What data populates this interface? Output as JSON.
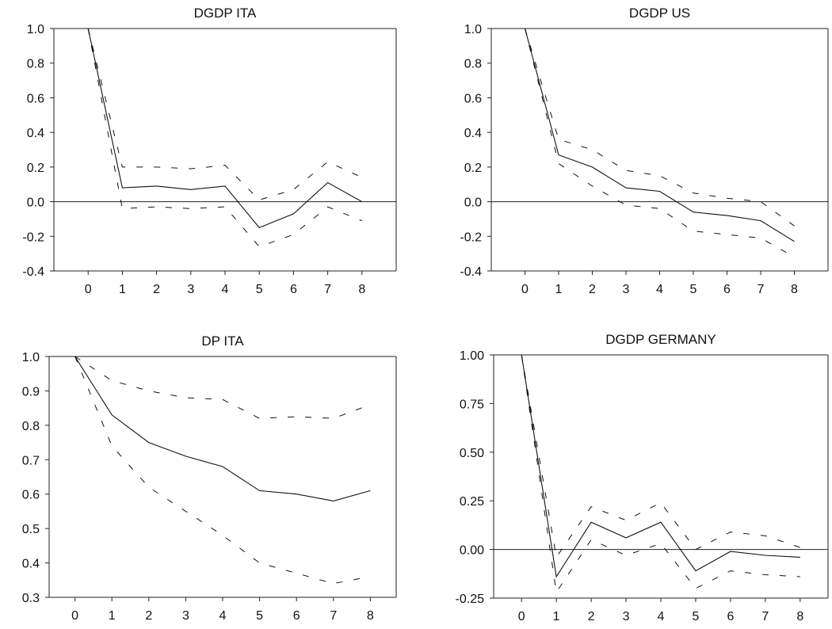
{
  "chart_data": [
    {
      "type": "line",
      "title": "DGDP ITA",
      "x": [
        0,
        1,
        2,
        3,
        4,
        5,
        6,
        7,
        8
      ],
      "yticks": [
        "1.0",
        "0.8",
        "0.6",
        "0.4",
        "0.2",
        "0.0",
        "-0.2",
        "-0.4"
      ],
      "ylim": [
        -0.4,
        1.0
      ],
      "xlim": [
        -1,
        9
      ],
      "zero_line": true,
      "series": [
        {
          "values": [
            1.0,
            0.08,
            0.09,
            0.07,
            0.09,
            -0.15,
            -0.07,
            0.11,
            0.0
          ],
          "style": "solid"
        },
        {
          "values": [
            1.0,
            0.2,
            0.2,
            0.19,
            0.21,
            0.01,
            0.07,
            0.23,
            0.14
          ],
          "style": "dashed"
        },
        {
          "values": [
            1.0,
            -0.04,
            -0.03,
            -0.04,
            -0.03,
            -0.26,
            -0.19,
            -0.03,
            -0.11
          ],
          "style": "dashed"
        }
      ]
    },
    {
      "type": "line",
      "title": "DGDP US",
      "x": [
        0,
        1,
        2,
        3,
        4,
        5,
        6,
        7,
        8
      ],
      "yticks": [
        "1.0",
        "0.8",
        "0.6",
        "0.4",
        "0.2",
        "0.0",
        "-0.2",
        "-0.4"
      ],
      "ylim": [
        -0.4,
        1.0
      ],
      "xlim": [
        -1,
        9
      ],
      "zero_line": true,
      "series": [
        {
          "values": [
            1.0,
            0.27,
            0.2,
            0.08,
            0.06,
            -0.06,
            -0.08,
            -0.11,
            -0.23
          ],
          "style": "solid"
        },
        {
          "values": [
            1.0,
            0.36,
            0.3,
            0.18,
            0.15,
            0.05,
            0.02,
            0.0,
            -0.14
          ],
          "style": "dashed"
        },
        {
          "values": [
            1.0,
            0.22,
            0.09,
            -0.02,
            -0.04,
            -0.17,
            -0.19,
            -0.21,
            -0.32
          ],
          "style": "dashed"
        }
      ]
    },
    {
      "type": "line",
      "title": "DP ITA",
      "x": [
        0,
        1,
        2,
        3,
        4,
        5,
        6,
        7,
        8
      ],
      "yticks": [
        "1.0",
        "0.9",
        "0.8",
        "0.7",
        "0.6",
        "0.5",
        "0.4",
        "0.3"
      ],
      "ylim": [
        0.3,
        1.0
      ],
      "xlim": [
        -0.7,
        8.7
      ],
      "zero_line": false,
      "series": [
        {
          "values": [
            1.0,
            0.83,
            0.75,
            0.71,
            0.68,
            0.61,
            0.6,
            0.58,
            0.61
          ],
          "style": "solid"
        },
        {
          "values": [
            1.0,
            0.93,
            0.9,
            0.88,
            0.875,
            0.82,
            0.825,
            0.82,
            0.86
          ],
          "style": "dashed"
        },
        {
          "values": [
            1.0,
            0.74,
            0.62,
            0.55,
            0.48,
            0.4,
            0.37,
            0.34,
            0.36
          ],
          "style": "dashed"
        }
      ]
    },
    {
      "type": "line",
      "title": "DGDP GERMANY",
      "x": [
        0,
        1,
        2,
        3,
        4,
        5,
        6,
        7,
        8
      ],
      "yticks": [
        "1.00",
        "0.75",
        "0.50",
        "0.25",
        "0.00",
        "-0.25"
      ],
      "ylim": [
        -0.25,
        1.0
      ],
      "xlim": [
        -0.8,
        8.8
      ],
      "zero_line": true,
      "series": [
        {
          "values": [
            1.0,
            -0.14,
            0.14,
            0.06,
            0.14,
            -0.11,
            -0.01,
            -0.03,
            -0.04
          ],
          "style": "solid"
        },
        {
          "values": [
            1.0,
            -0.04,
            0.22,
            0.15,
            0.24,
            0.0,
            0.09,
            0.07,
            0.01
          ],
          "style": "dashed"
        },
        {
          "values": [
            1.0,
            -0.22,
            0.05,
            -0.03,
            0.03,
            -0.2,
            -0.11,
            -0.13,
            -0.14
          ],
          "style": "dashed"
        }
      ]
    }
  ]
}
